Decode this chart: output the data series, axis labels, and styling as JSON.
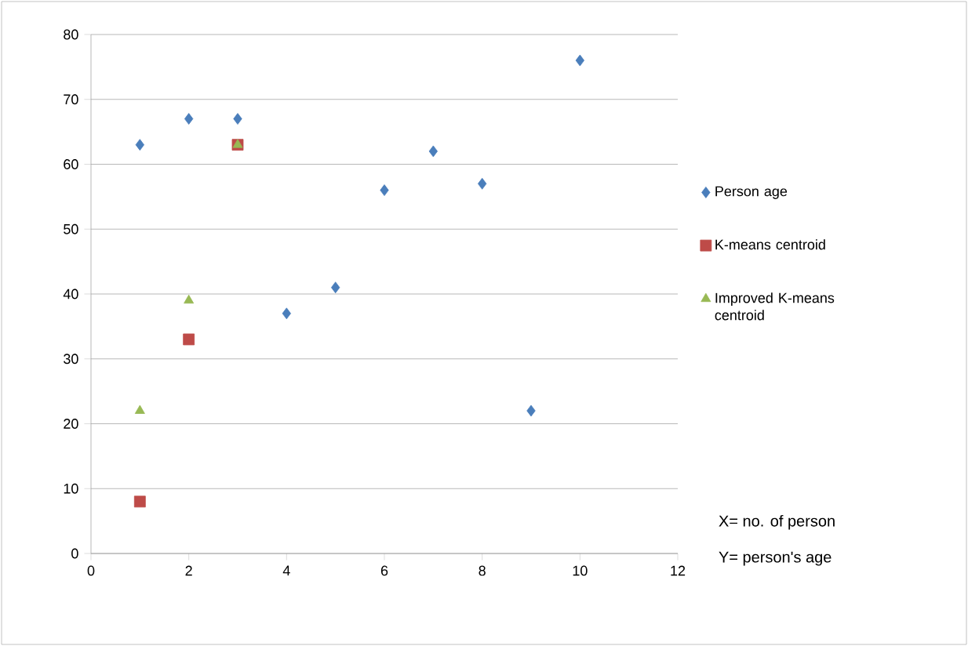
{
  "chart_data": {
    "type": "scatter",
    "series": [
      {
        "name": "Person age",
        "color": "#4a7ebb",
        "marker": "diamond",
        "x": [
          1,
          2,
          3,
          4,
          5,
          6,
          7,
          8,
          9,
          10
        ],
        "values": [
          63,
          67,
          67,
          37,
          41,
          56,
          62,
          57,
          22,
          76
        ]
      },
      {
        "name": "K-means centroid",
        "color": "#be4b48",
        "marker": "square",
        "x": [
          1,
          2,
          3
        ],
        "values": [
          8,
          33,
          63
        ]
      },
      {
        "name": "Improved K-means centroid",
        "color": "#98b954",
        "marker": "triangle",
        "x": [
          1,
          2,
          3
        ],
        "values": [
          22,
          39,
          63
        ]
      }
    ],
    "xlim": [
      0,
      12
    ],
    "xticks": [
      0,
      2,
      4,
      6,
      8,
      10,
      12
    ],
    "ylim": [
      0,
      80
    ],
    "yticks": [
      0,
      10,
      20,
      30,
      40,
      50,
      60,
      70,
      80
    ],
    "grid": "y",
    "legend": "right",
    "annotations": [
      "X= no. of person",
      "Y= person's age"
    ]
  }
}
